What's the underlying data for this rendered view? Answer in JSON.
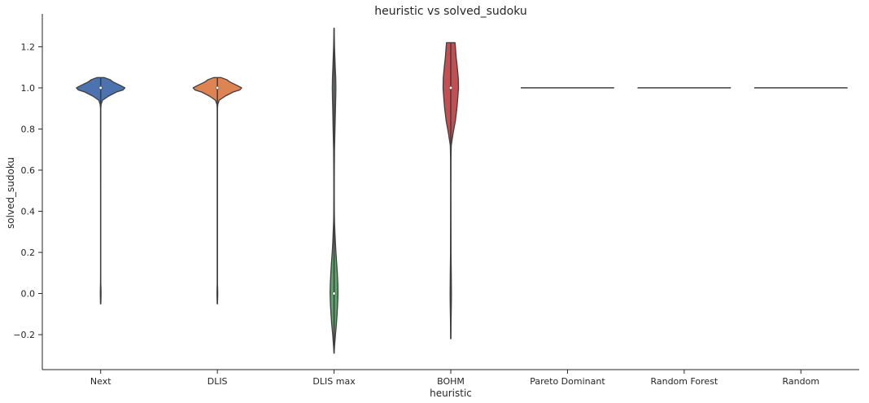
{
  "chart_data": {
    "type": "violin",
    "title": "heuristic vs solved_sudoku",
    "xlabel": "heuristic",
    "ylabel": "solved_sudoku",
    "ylim": [
      -0.37,
      1.36
    ],
    "yticks": [
      -0.2,
      0.0,
      0.2,
      0.4,
      0.6,
      0.8,
      1.0,
      1.2
    ],
    "ytick_labels": [
      "−0.2",
      "0.0",
      "0.2",
      "0.4",
      "0.6",
      "0.8",
      "1.0",
      "1.2"
    ],
    "grid": false,
    "categories": [
      "Next",
      "DLIS",
      "DLIS max",
      "BOHM",
      "Pareto Dominant",
      "Random Forest",
      "Random"
    ],
    "violins": [
      {
        "category": "Next",
        "color": "#4c72b0",
        "median": 1.0,
        "support": [
          -0.05,
          1.05
        ],
        "profile": [
          [
            -0.05,
            0.003
          ],
          [
            -0.01,
            0.008
          ],
          [
            0.0,
            0.008
          ],
          [
            0.01,
            0.008
          ],
          [
            0.05,
            0.003
          ],
          [
            0.1,
            0.002
          ],
          [
            0.5,
            0.002
          ],
          [
            0.9,
            0.003
          ],
          [
            0.92,
            0.01
          ],
          [
            0.94,
            0.04
          ],
          [
            0.96,
            0.17
          ],
          [
            0.98,
            0.34
          ],
          [
            0.99,
            0.48
          ],
          [
            1.0,
            0.52
          ],
          [
            1.01,
            0.44
          ],
          [
            1.02,
            0.35
          ],
          [
            1.03,
            0.26
          ],
          [
            1.04,
            0.2
          ],
          [
            1.05,
            0.08
          ]
        ]
      },
      {
        "category": "DLIS",
        "color": "#dd8452",
        "median": 1.0,
        "support": [
          -0.05,
          1.05
        ],
        "profile": [
          [
            -0.05,
            0.003
          ],
          [
            -0.01,
            0.008
          ],
          [
            0.0,
            0.008
          ],
          [
            0.01,
            0.008
          ],
          [
            0.05,
            0.003
          ],
          [
            0.1,
            0.002
          ],
          [
            0.5,
            0.002
          ],
          [
            0.9,
            0.003
          ],
          [
            0.92,
            0.01
          ],
          [
            0.94,
            0.04
          ],
          [
            0.96,
            0.17
          ],
          [
            0.98,
            0.34
          ],
          [
            0.99,
            0.48
          ],
          [
            1.0,
            0.52
          ],
          [
            1.01,
            0.44
          ],
          [
            1.02,
            0.35
          ],
          [
            1.03,
            0.26
          ],
          [
            1.04,
            0.2
          ],
          [
            1.05,
            0.08
          ]
        ]
      },
      {
        "category": "DLIS max",
        "color": "#55a868",
        "median": 0.0,
        "support": [
          -0.29,
          1.29
        ],
        "profile": [
          [
            -0.29,
            0.002
          ],
          [
            -0.26,
            0.01
          ],
          [
            -0.2,
            0.03
          ],
          [
            -0.15,
            0.05
          ],
          [
            -0.1,
            0.065
          ],
          [
            -0.05,
            0.078
          ],
          [
            0.0,
            0.085
          ],
          [
            0.05,
            0.08
          ],
          [
            0.1,
            0.07
          ],
          [
            0.15,
            0.055
          ],
          [
            0.2,
            0.04
          ],
          [
            0.25,
            0.028
          ],
          [
            0.3,
            0.018
          ],
          [
            0.35,
            0.01
          ],
          [
            0.4,
            0.006
          ],
          [
            0.5,
            0.004
          ],
          [
            0.6,
            0.006
          ],
          [
            0.7,
            0.01
          ],
          [
            0.8,
            0.02
          ],
          [
            0.9,
            0.03
          ],
          [
            0.95,
            0.035
          ],
          [
            1.0,
            0.038
          ],
          [
            1.05,
            0.035
          ],
          [
            1.1,
            0.025
          ],
          [
            1.2,
            0.01
          ],
          [
            1.29,
            0.002
          ]
        ]
      },
      {
        "category": "BOHM",
        "color": "#c44e52",
        "median": 1.0,
        "support": [
          -0.22,
          1.22
        ],
        "profile": [
          [
            -0.22,
            0.002
          ],
          [
            -0.15,
            0.005
          ],
          [
            -0.05,
            0.012
          ],
          [
            0.0,
            0.014
          ],
          [
            0.1,
            0.01
          ],
          [
            0.2,
            0.005
          ],
          [
            0.3,
            0.003
          ],
          [
            0.5,
            0.002
          ],
          [
            0.65,
            0.004
          ],
          [
            0.72,
            0.01
          ],
          [
            0.78,
            0.05
          ],
          [
            0.84,
            0.1
          ],
          [
            0.9,
            0.13
          ],
          [
            0.95,
            0.15
          ],
          [
            1.0,
            0.165
          ],
          [
            1.05,
            0.16
          ],
          [
            1.1,
            0.14
          ],
          [
            1.15,
            0.115
          ],
          [
            1.2,
            0.1
          ],
          [
            1.22,
            0.09
          ]
        ]
      },
      {
        "category": "Pareto Dominant",
        "color": "#8172b3",
        "median": 1.0,
        "support": [
          1.0,
          1.0
        ],
        "profile": []
      },
      {
        "category": "Random Forest",
        "color": "#937860",
        "median": 1.0,
        "support": [
          1.0,
          1.0
        ],
        "profile": []
      },
      {
        "category": "Random",
        "color": "#da8bc3",
        "median": 1.0,
        "support": [
          1.0,
          1.0
        ],
        "profile": []
      }
    ]
  }
}
